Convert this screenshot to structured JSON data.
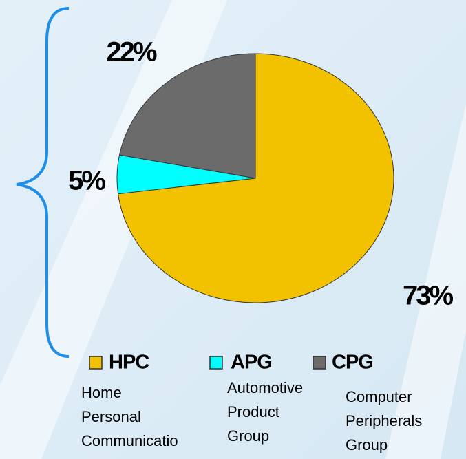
{
  "chart_data": {
    "type": "pie",
    "categories": [
      "HPC",
      "APG",
      "CPG"
    ],
    "descriptions": [
      [
        "Home",
        "Personal",
        "Communicatio"
      ],
      [
        "Automotive",
        "Product",
        "Group"
      ],
      [
        "Computer",
        "Peripherals",
        "Group"
      ]
    ],
    "values": [
      73,
      5,
      22
    ],
    "value_labels": [
      "73%",
      "5%",
      "22%"
    ],
    "colors": [
      "#f2c200",
      "#00ffff",
      "#6b6b6b"
    ]
  }
}
